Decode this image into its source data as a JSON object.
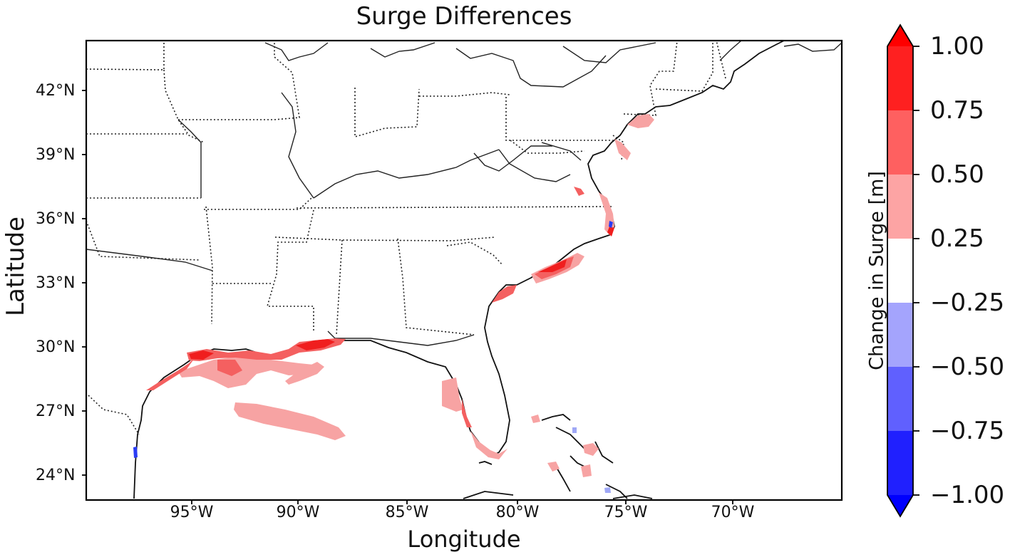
{
  "title": "Surge Differences",
  "xlabel": "Longitude",
  "ylabel": "Latitude",
  "lat_ticks": [
    "42°N",
    "39°N",
    "36°N",
    "33°N",
    "30°N",
    "27°N",
    "24°N"
  ],
  "lon_ticks": [
    "95°W",
    "90°W",
    "85°W",
    "80°W",
    "75°W",
    "70°W"
  ],
  "extent": {
    "lon": [
      -100,
      -64.5
    ],
    "lat": [
      22.7,
      44.5
    ]
  },
  "colorbar": {
    "label": "Change in Surge [m]",
    "ticks": [
      "1.00",
      "0.75",
      "0.50",
      "0.25",
      "−0.25",
      "−0.50",
      "−0.75",
      "−1.00"
    ],
    "bins": [
      {
        "range": [
          0.75,
          1.0
        ],
        "color": "#fe2020"
      },
      {
        "range": [
          0.5,
          0.75
        ],
        "color": "#fe6060"
      },
      {
        "range": [
          0.25,
          0.5
        ],
        "color": "#fda4a4"
      },
      {
        "range": [
          -0.25,
          0.25
        ],
        "color": "#ffffff"
      },
      {
        "range": [
          -0.5,
          -0.25
        ],
        "color": "#a4a4fd"
      },
      {
        "range": [
          -0.75,
          -0.5
        ],
        "color": "#6060fe"
      },
      {
        "range": [
          -1.0,
          -0.75
        ],
        "color": "#2020fe"
      }
    ],
    "extend": "both",
    "over_color": "#fe0000",
    "under_color": "#0000fe"
  },
  "colors": {
    "light_red": "#f7a3a3",
    "mid_red": "#f46060",
    "dark_red": "#f01e1e",
    "blue": "#2a3cf5",
    "light_blue": "#9fa8f6"
  }
}
